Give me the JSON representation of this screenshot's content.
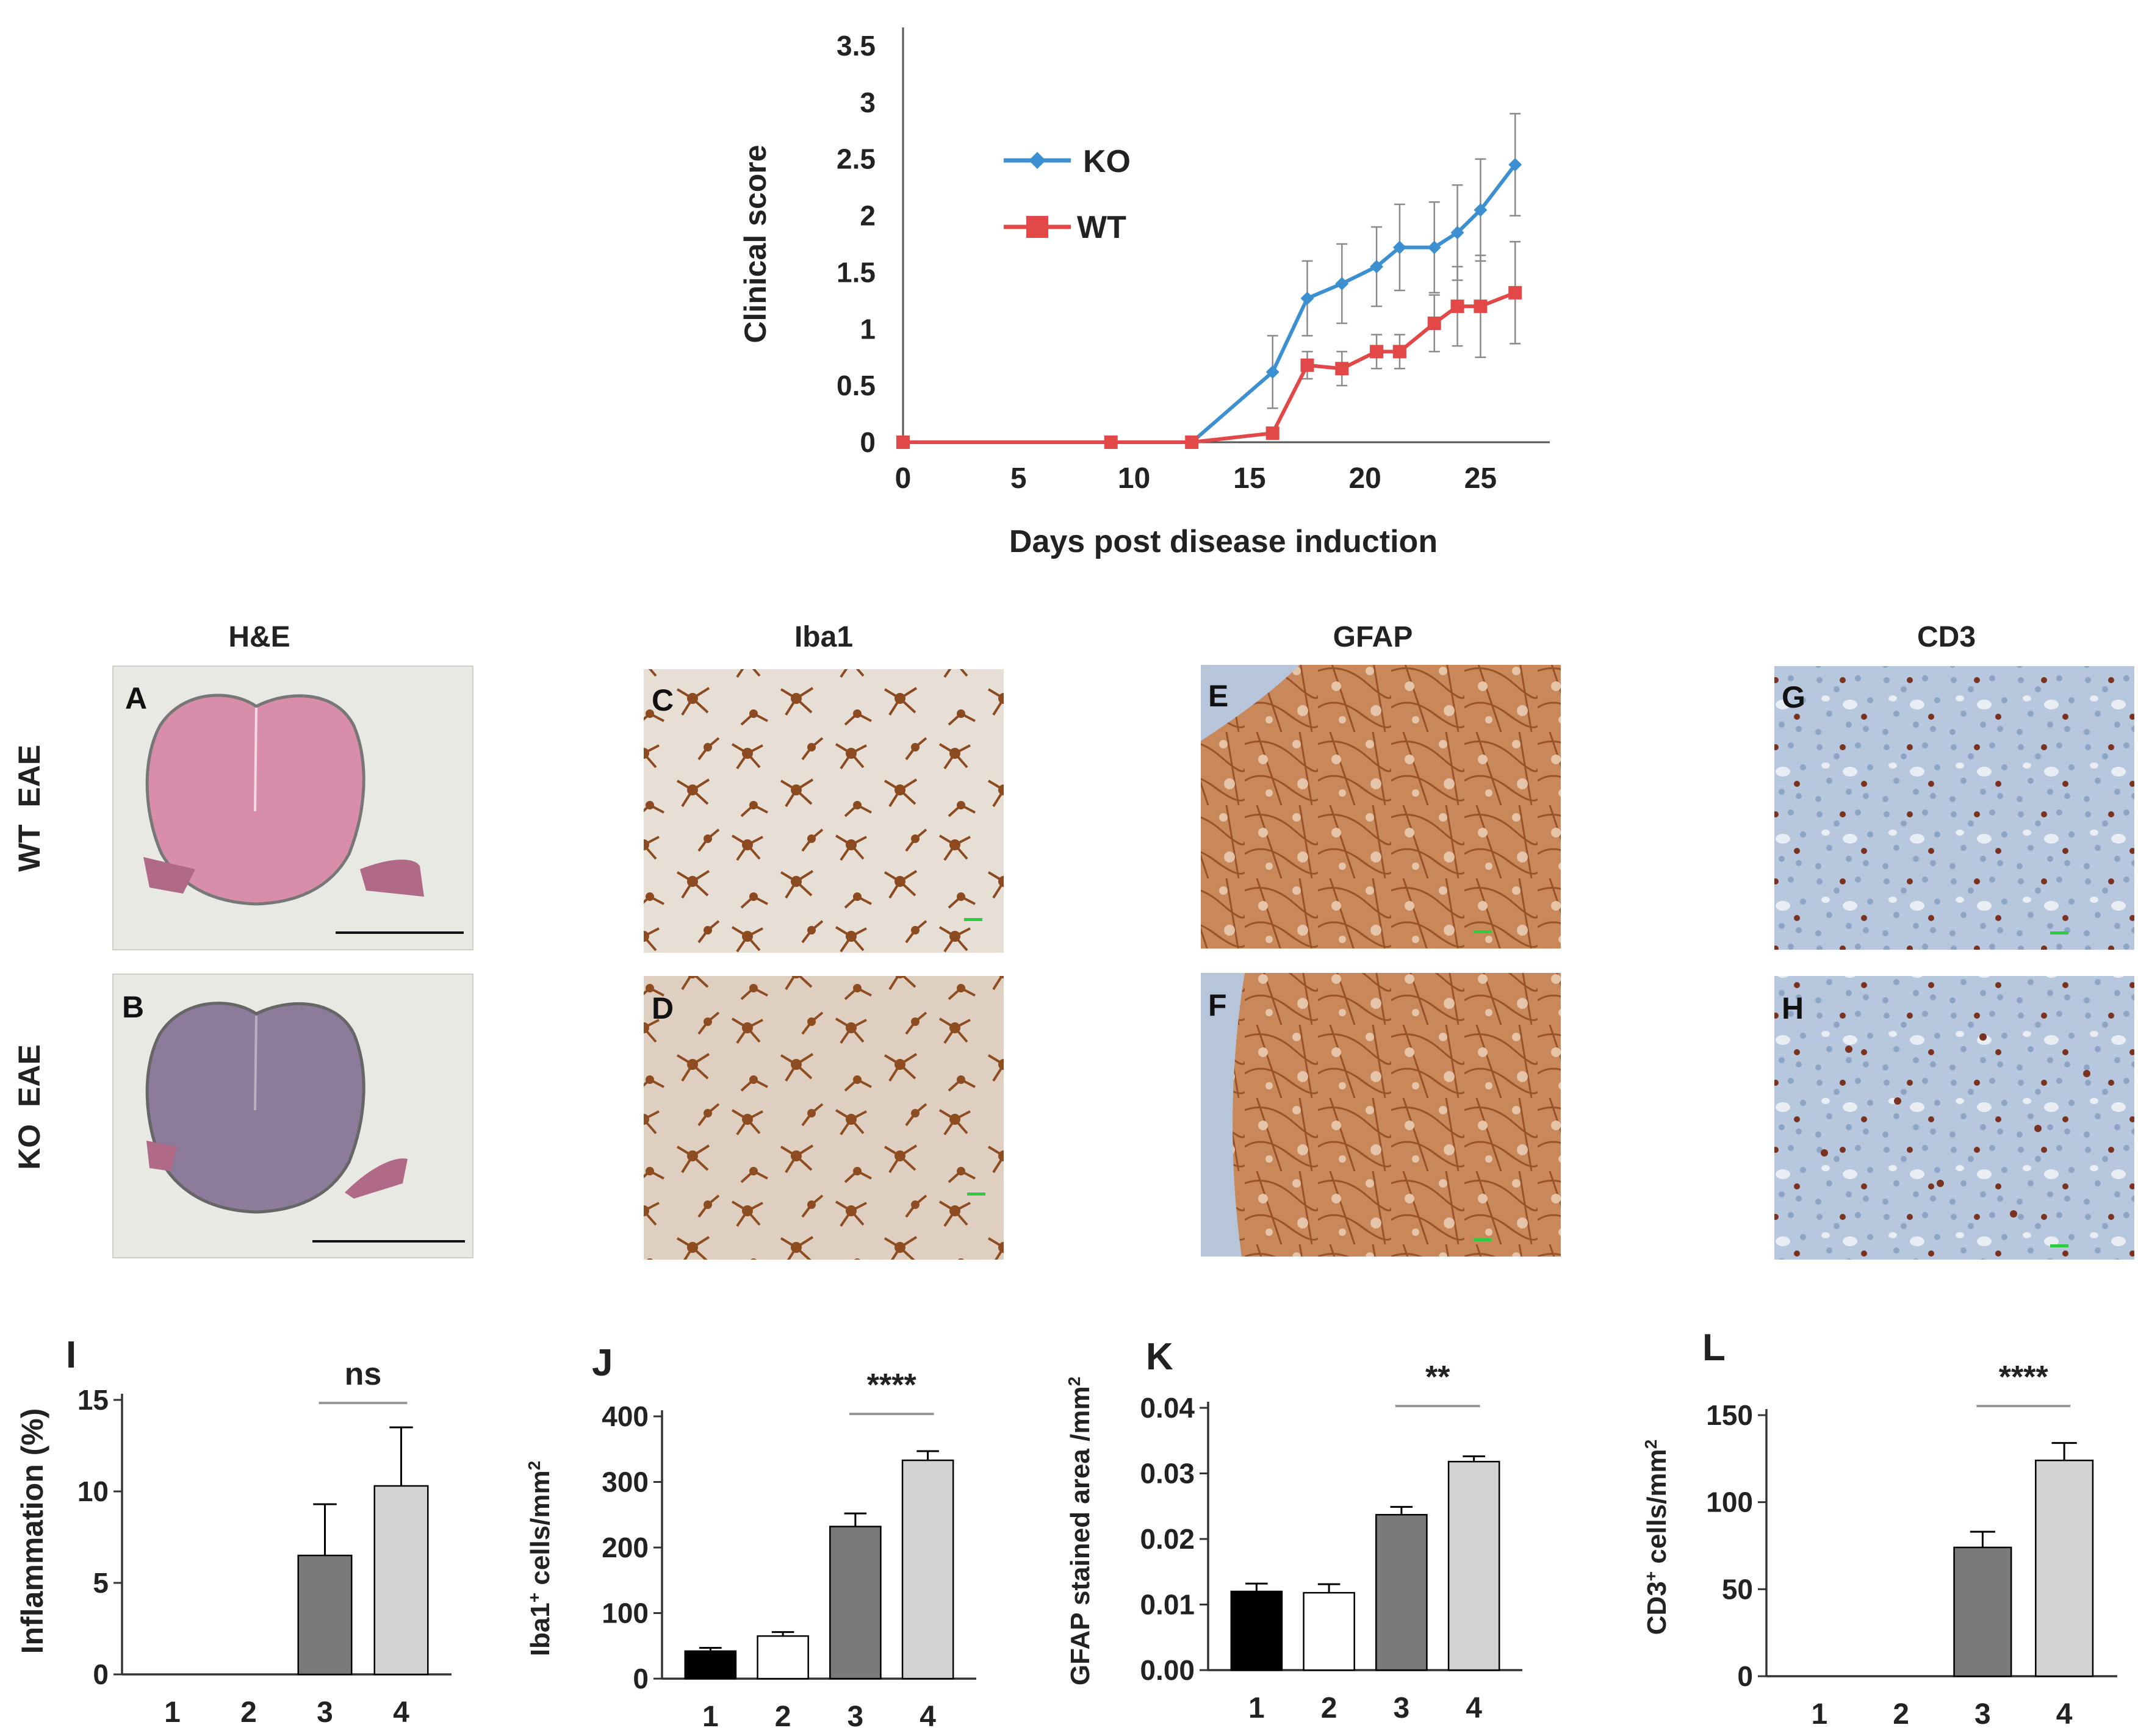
{
  "colors": {
    "ko": "#3c8fd0",
    "wt": "#e24848",
    "error_bar": "#8a8a8a",
    "axis": "#333333",
    "bar_group_1": "#000000",
    "bar_group_2": "#ffffff",
    "bar_group_3": "#7a7a7a",
    "bar_group_4": "#d3d3d3",
    "he_tissue_wt": "#d88eab",
    "he_tissue_ko": "#8c7b9a",
    "iba1_background": "#e7ded5",
    "iba1_stain": "#8b4a1f",
    "gfap_background": "#c8885a",
    "gfap_stain": "#9a5228",
    "cd3_background": "#b7c7dd",
    "cd3_stain": "#7a3320",
    "scale_bar": "#2ecc40"
  },
  "histology": {
    "columns": [
      "H&E",
      "Iba1",
      "GFAP",
      "CD3"
    ],
    "rows": [
      "WT  EAE",
      "KO  EAE"
    ],
    "panel_letters": [
      "A",
      "B",
      "C",
      "D",
      "E",
      "F",
      "G",
      "H"
    ]
  },
  "chart_data": [
    {
      "type": "line",
      "title": "",
      "xlabel": "Days post disease induction",
      "ylabel": "Clinical score",
      "xlim": [
        0,
        28
      ],
      "ylim": [
        0,
        3.5
      ],
      "xticks": [
        "0",
        "5",
        "10",
        "15",
        "20",
        "25"
      ],
      "yticks": [
        "0",
        "0.5",
        "1",
        "1.5",
        "2",
        "2.5",
        "3",
        "3.5"
      ],
      "legend_position": "upper-left",
      "series": [
        {
          "name": "KO",
          "marker": "diamond",
          "x": [
            12.5,
            16,
            17.5,
            19,
            20.5,
            21.5,
            23,
            24,
            25,
            26.5
          ],
          "y": [
            0,
            0.62,
            1.27,
            1.4,
            1.55,
            1.72,
            1.72,
            1.85,
            2.05,
            2.45
          ],
          "error": [
            0,
            0.32,
            0.33,
            0.35,
            0.35,
            0.38,
            0.4,
            0.42,
            0.45,
            0.45
          ]
        },
        {
          "name": "WT",
          "marker": "square",
          "x": [
            0,
            9,
            12.5,
            16,
            17.5,
            19,
            20.5,
            21.5,
            23,
            24,
            25,
            26.5
          ],
          "y": [
            0,
            0,
            0,
            0.08,
            0.68,
            0.65,
            0.8,
            0.8,
            1.05,
            1.2,
            1.2,
            1.32
          ],
          "error": [
            0,
            0,
            0,
            0,
            0.12,
            0.15,
            0.15,
            0.15,
            0.25,
            0.35,
            0.45,
            0.45
          ]
        }
      ]
    },
    {
      "panel": "I",
      "type": "bar",
      "categories": [
        "1",
        "2",
        "3",
        "4"
      ],
      "values": [
        0,
        0,
        6.5,
        10.3
      ],
      "errors": [
        0,
        0,
        2.8,
        3.2
      ],
      "ylabel": "Inflammation (%)",
      "ylim": [
        0,
        15
      ],
      "yticks": [
        "0",
        "5",
        "10",
        "15"
      ],
      "significance": "ns"
    },
    {
      "panel": "J",
      "type": "bar",
      "categories": [
        "1",
        "2",
        "3",
        "4"
      ],
      "values": [
        42,
        65,
        232,
        333
      ],
      "errors": [
        5,
        6,
        20,
        14
      ],
      "ylabel_main": "Iba1",
      "ylabel_super": "+",
      "ylabel_rest": " cells/mm",
      "ylabel_unit_super": "2",
      "ylim": [
        0,
        400
      ],
      "yticks": [
        "0",
        "100",
        "200",
        "300",
        "400"
      ],
      "significance": "****"
    },
    {
      "panel": "K",
      "type": "bar",
      "categories": [
        "1",
        "2",
        "3",
        "4"
      ],
      "values": [
        0.012,
        0.0118,
        0.0237,
        0.0318
      ],
      "errors": [
        0.0012,
        0.0013,
        0.0012,
        0.0008
      ],
      "ylabel": "GFAP stained area /mm",
      "ylabel_unit_super": "2",
      "ylim": [
        0,
        0.04
      ],
      "yticks": [
        "0.00",
        "0.01",
        "0.02",
        "0.03",
        "0.04"
      ],
      "significance": "**"
    },
    {
      "panel": "L",
      "type": "bar",
      "categories": [
        "1",
        "2",
        "3",
        "4"
      ],
      "values": [
        0,
        0,
        74,
        124
      ],
      "errors": [
        0,
        0,
        9,
        10
      ],
      "ylabel_main": "CD3",
      "ylabel_super": "+",
      "ylabel_rest": " cells/mm",
      "ylabel_unit_super": "2",
      "ylim": [
        0,
        150
      ],
      "yticks": [
        "0",
        "50",
        "100",
        "150"
      ],
      "significance": "****"
    }
  ]
}
